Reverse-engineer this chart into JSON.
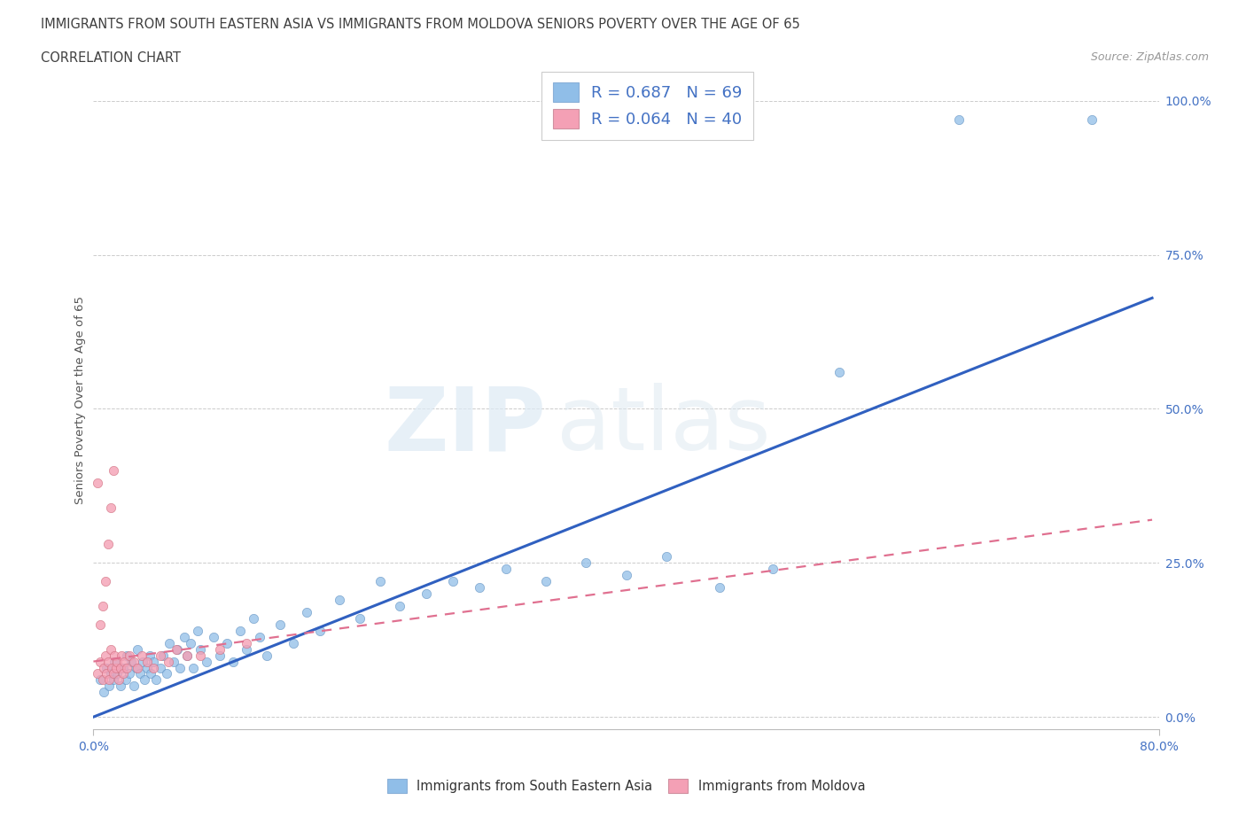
{
  "title": "IMMIGRANTS FROM SOUTH EASTERN ASIA VS IMMIGRANTS FROM MOLDOVA SENIORS POVERTY OVER THE AGE OF 65",
  "subtitle": "CORRELATION CHART",
  "source": "Source: ZipAtlas.com",
  "ylabel": "Seniors Poverty Over the Age of 65",
  "ytick_labels": [
    "0.0%",
    "25.0%",
    "50.0%",
    "75.0%",
    "100.0%"
  ],
  "ytick_values": [
    0.0,
    0.25,
    0.5,
    0.75,
    1.0
  ],
  "xlim": [
    0.0,
    0.8
  ],
  "ylim": [
    -0.02,
    1.05
  ],
  "legend_text1": "R = 0.687   N = 69",
  "legend_text2": "R = 0.064   N = 40",
  "color_blue": "#90BEE8",
  "color_pink": "#F4A0B5",
  "color_blue_line": "#3060C0",
  "blue_line_x": [
    0.0,
    0.795
  ],
  "blue_line_y": [
    0.0,
    0.68
  ],
  "pink_line_x": [
    0.0,
    0.795
  ],
  "pink_line_y": [
    0.09,
    0.32
  ],
  "blue_scatter_x": [
    0.005,
    0.008,
    0.01,
    0.012,
    0.013,
    0.015,
    0.016,
    0.018,
    0.02,
    0.022,
    0.024,
    0.025,
    0.027,
    0.028,
    0.03,
    0.032,
    0.033,
    0.035,
    0.037,
    0.038,
    0.04,
    0.042,
    0.043,
    0.045,
    0.047,
    0.05,
    0.052,
    0.055,
    0.057,
    0.06,
    0.063,
    0.065,
    0.068,
    0.07,
    0.073,
    0.075,
    0.078,
    0.08,
    0.085,
    0.09,
    0.095,
    0.1,
    0.105,
    0.11,
    0.115,
    0.12,
    0.125,
    0.13,
    0.14,
    0.15,
    0.16,
    0.17,
    0.185,
    0.2,
    0.215,
    0.23,
    0.25,
    0.27,
    0.29,
    0.31,
    0.34,
    0.37,
    0.4,
    0.43,
    0.47,
    0.51,
    0.56,
    0.65,
    0.75
  ],
  "blue_scatter_y": [
    0.06,
    0.04,
    0.08,
    0.05,
    0.07,
    0.06,
    0.09,
    0.07,
    0.05,
    0.08,
    0.06,
    0.1,
    0.07,
    0.09,
    0.05,
    0.08,
    0.11,
    0.07,
    0.09,
    0.06,
    0.08,
    0.1,
    0.07,
    0.09,
    0.06,
    0.08,
    0.1,
    0.07,
    0.12,
    0.09,
    0.11,
    0.08,
    0.13,
    0.1,
    0.12,
    0.08,
    0.14,
    0.11,
    0.09,
    0.13,
    0.1,
    0.12,
    0.09,
    0.14,
    0.11,
    0.16,
    0.13,
    0.1,
    0.15,
    0.12,
    0.17,
    0.14,
    0.19,
    0.16,
    0.22,
    0.18,
    0.2,
    0.22,
    0.21,
    0.24,
    0.22,
    0.25,
    0.23,
    0.26,
    0.21,
    0.24,
    0.56,
    0.97,
    0.97
  ],
  "pink_scatter_x": [
    0.003,
    0.005,
    0.007,
    0.008,
    0.009,
    0.01,
    0.011,
    0.012,
    0.013,
    0.014,
    0.015,
    0.016,
    0.017,
    0.018,
    0.019,
    0.02,
    0.021,
    0.022,
    0.023,
    0.025,
    0.027,
    0.03,
    0.033,
    0.036,
    0.04,
    0.045,
    0.05,
    0.056,
    0.062,
    0.07,
    0.08,
    0.095,
    0.115,
    0.005,
    0.007,
    0.009,
    0.011,
    0.013,
    0.015,
    0.003
  ],
  "pink_scatter_y": [
    0.07,
    0.09,
    0.06,
    0.08,
    0.1,
    0.07,
    0.09,
    0.06,
    0.11,
    0.08,
    0.07,
    0.1,
    0.08,
    0.09,
    0.06,
    0.08,
    0.1,
    0.07,
    0.09,
    0.08,
    0.1,
    0.09,
    0.08,
    0.1,
    0.09,
    0.08,
    0.1,
    0.09,
    0.11,
    0.1,
    0.1,
    0.11,
    0.12,
    0.15,
    0.18,
    0.22,
    0.28,
    0.34,
    0.4,
    0.38
  ]
}
